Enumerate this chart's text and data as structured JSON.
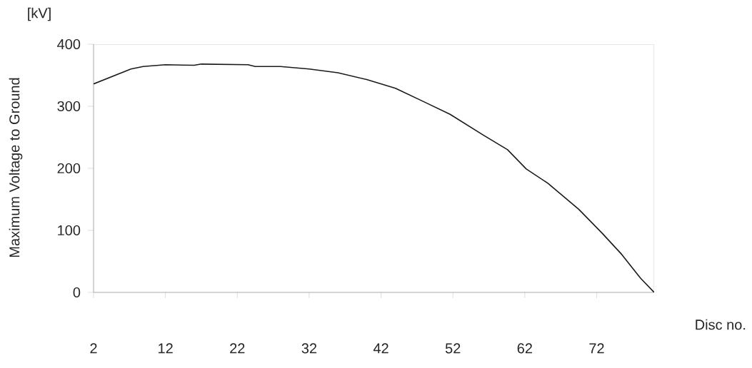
{
  "chart_data": {
    "type": "line",
    "xlabel": "Disc no.",
    "ylabel": "Maximum Voltage to Ground",
    "annotations": [
      "[kV]"
    ],
    "x": [
      2,
      7.2,
      8.9,
      12,
      16,
      17,
      23.5,
      24.5,
      28,
      32,
      36,
      40,
      44,
      48,
      51.6,
      56.3,
      59.6,
      62.2,
      65.2,
      69.5,
      72.8,
      75.5,
      78.1,
      80
    ],
    "values": [
      336,
      360,
      364,
      367,
      366,
      368,
      367,
      364,
      364,
      360,
      354,
      343,
      329,
      307,
      287,
      253,
      230,
      199,
      176,
      134,
      95,
      61,
      23,
      0
    ],
    "color": "#1a1a1a",
    "xlim": [
      2,
      80
    ],
    "ylim": [
      0,
      400
    ],
    "xticks": [
      2,
      12,
      22,
      32,
      42,
      52,
      62,
      72
    ],
    "yticks": [
      0,
      100,
      200,
      300,
      400
    ],
    "grid": false,
    "marker": "none",
    "line_style": "solid"
  }
}
